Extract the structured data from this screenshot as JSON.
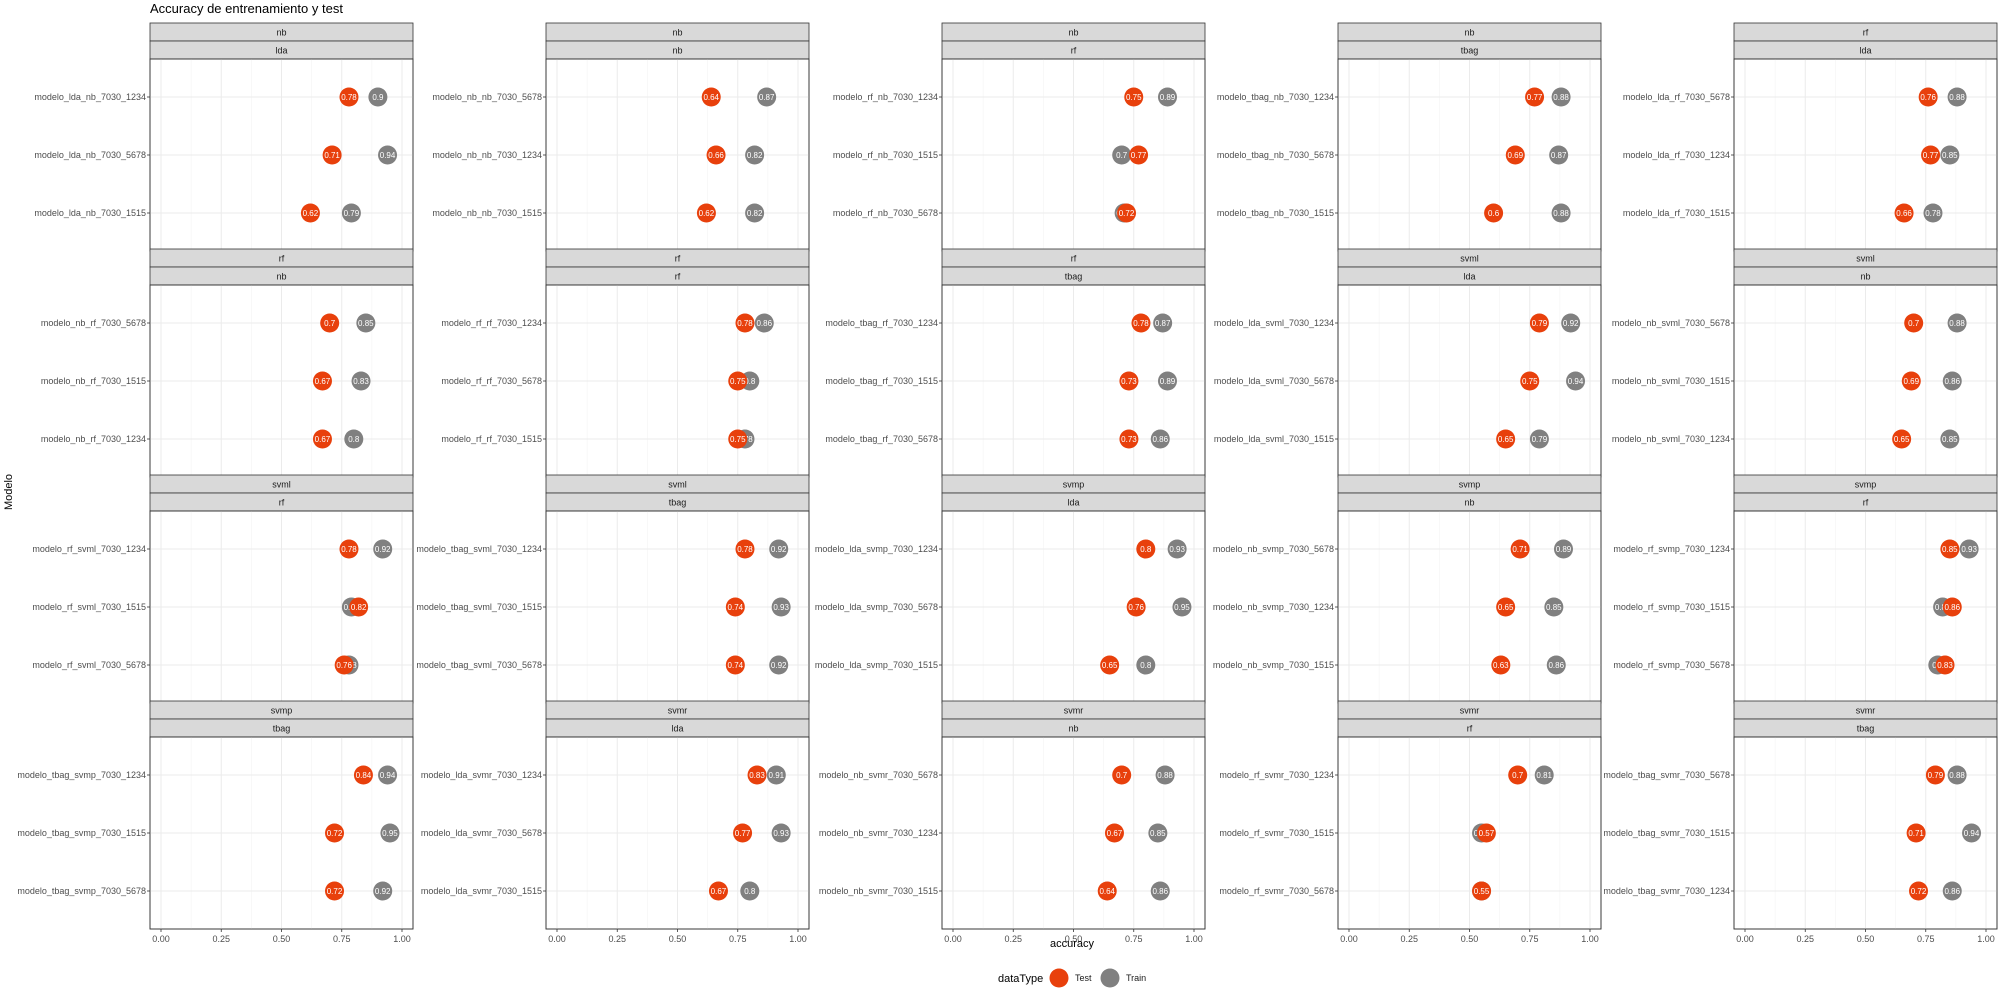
{
  "title": "Accuracy de entrenamiento y test",
  "chart_data": {
    "type": "scatter",
    "title": "Accuracy de entrenamiento y test",
    "xlabel": "accuracy",
    "ylabel": "Modelo",
    "xlim": [
      0,
      1
    ],
    "xticks": [
      "0.00",
      "0.25",
      "0.50",
      "0.75",
      "1.00"
    ],
    "grid": true,
    "legend": {
      "title": "dataType",
      "placement": "bottom",
      "entries": [
        {
          "name": "Test",
          "color": "#e8400c"
        },
        {
          "name": "Train",
          "color": "#808080"
        }
      ]
    },
    "panels": [
      {
        "strip_top": "nb",
        "strip_bottom": "lda",
        "rows": [
          {
            "model": "modelo_lda_nb_7030_1234",
            "test": 0.78,
            "train": 0.9
          },
          {
            "model": "modelo_lda_nb_7030_5678",
            "test": 0.71,
            "train": 0.94
          },
          {
            "model": "modelo_lda_nb_7030_1515",
            "test": 0.62,
            "train": 0.79
          }
        ]
      },
      {
        "strip_top": "nb",
        "strip_bottom": "nb",
        "rows": [
          {
            "model": "modelo_nb_nb_7030_5678",
            "test": 0.64,
            "train": 0.87
          },
          {
            "model": "modelo_nb_nb_7030_1234",
            "test": 0.66,
            "train": 0.82
          },
          {
            "model": "modelo_nb_nb_7030_1515",
            "test": 0.62,
            "train": 0.82
          }
        ]
      },
      {
        "strip_top": "nb",
        "strip_bottom": "rf",
        "rows": [
          {
            "model": "modelo_rf_nb_7030_1234",
            "test": 0.75,
            "train": 0.89
          },
          {
            "model": "modelo_rf_nb_7030_1515",
            "test": 0.77,
            "train": 0.7
          },
          {
            "model": "modelo_rf_nb_7030_5678",
            "test": 0.72,
            "train": 0.71
          }
        ]
      },
      {
        "strip_top": "nb",
        "strip_bottom": "tbag",
        "rows": [
          {
            "model": "modelo_tbag_nb_7030_1234",
            "test": 0.77,
            "train": 0.88
          },
          {
            "model": "modelo_tbag_nb_7030_5678",
            "test": 0.69,
            "train": 0.87
          },
          {
            "model": "modelo_tbag_nb_7030_1515",
            "test": 0.6,
            "train": 0.88
          }
        ]
      },
      {
        "strip_top": "rf",
        "strip_bottom": "lda",
        "rows": [
          {
            "model": "modelo_lda_rf_7030_5678",
            "test": 0.76,
            "train": 0.88
          },
          {
            "model": "modelo_lda_rf_7030_1234",
            "test": 0.77,
            "train": 0.85
          },
          {
            "model": "modelo_lda_rf_7030_1515",
            "test": 0.66,
            "train": 0.78
          }
        ]
      },
      {
        "strip_top": "rf",
        "strip_bottom": "nb",
        "rows": [
          {
            "model": "modelo_nb_rf_7030_5678",
            "test": 0.7,
            "train": 0.85
          },
          {
            "model": "modelo_nb_rf_7030_1515",
            "test": 0.67,
            "train": 0.83
          },
          {
            "model": "modelo_nb_rf_7030_1234",
            "test": 0.67,
            "train": 0.8
          }
        ]
      },
      {
        "strip_top": "rf",
        "strip_bottom": "rf",
        "rows": [
          {
            "model": "modelo_rf_rf_7030_1234",
            "test": 0.78,
            "train": 0.86
          },
          {
            "model": "modelo_rf_rf_7030_5678",
            "test": 0.75,
            "train": 0.8
          },
          {
            "model": "modelo_rf_rf_7030_1515",
            "test": 0.75,
            "train": 0.78
          }
        ]
      },
      {
        "strip_top": "rf",
        "strip_bottom": "tbag",
        "rows": [
          {
            "model": "modelo_tbag_rf_7030_1234",
            "test": 0.78,
            "train": 0.87
          },
          {
            "model": "modelo_tbag_rf_7030_1515",
            "test": 0.73,
            "train": 0.89
          },
          {
            "model": "modelo_tbag_rf_7030_5678",
            "test": 0.73,
            "train": 0.86
          }
        ]
      },
      {
        "strip_top": "svml",
        "strip_bottom": "lda",
        "rows": [
          {
            "model": "modelo_lda_svml_7030_1234",
            "test": 0.79,
            "train": 0.92
          },
          {
            "model": "modelo_lda_svml_7030_5678",
            "test": 0.75,
            "train": 0.94
          },
          {
            "model": "modelo_lda_svml_7030_1515",
            "test": 0.65,
            "train": 0.79
          }
        ]
      },
      {
        "strip_top": "svml",
        "strip_bottom": "nb",
        "rows": [
          {
            "model": "modelo_nb_svml_7030_5678",
            "test": 0.7,
            "train": 0.88
          },
          {
            "model": "modelo_nb_svml_7030_1515",
            "test": 0.69,
            "train": 0.86
          },
          {
            "model": "modelo_nb_svml_7030_1234",
            "test": 0.65,
            "train": 0.85
          }
        ]
      },
      {
        "strip_top": "svml",
        "strip_bottom": "rf",
        "rows": [
          {
            "model": "modelo_rf_svml_7030_1234",
            "test": 0.78,
            "train": 0.92
          },
          {
            "model": "modelo_rf_svml_7030_1515",
            "test": 0.82,
            "train": 0.79
          },
          {
            "model": "modelo_rf_svml_7030_5678",
            "test": 0.76,
            "train": 0.78
          }
        ]
      },
      {
        "strip_top": "svml",
        "strip_bottom": "tbag",
        "rows": [
          {
            "model": "modelo_tbag_svml_7030_1234",
            "test": 0.78,
            "train": 0.92
          },
          {
            "model": "modelo_tbag_svml_7030_1515",
            "test": 0.74,
            "train": 0.93
          },
          {
            "model": "modelo_tbag_svml_7030_5678",
            "test": 0.74,
            "train": 0.92
          }
        ]
      },
      {
        "strip_top": "svmp",
        "strip_bottom": "lda",
        "rows": [
          {
            "model": "modelo_lda_svmp_7030_1234",
            "test": 0.8,
            "train": 0.93
          },
          {
            "model": "modelo_lda_svmp_7030_5678",
            "test": 0.76,
            "train": 0.95
          },
          {
            "model": "modelo_lda_svmp_7030_1515",
            "test": 0.65,
            "train": 0.8
          }
        ]
      },
      {
        "strip_top": "svmp",
        "strip_bottom": "nb",
        "rows": [
          {
            "model": "modelo_nb_svmp_7030_5678",
            "test": 0.71,
            "train": 0.89
          },
          {
            "model": "modelo_nb_svmp_7030_1234",
            "test": 0.65,
            "train": 0.85
          },
          {
            "model": "modelo_nb_svmp_7030_1515",
            "test": 0.63,
            "train": 0.86
          }
        ]
      },
      {
        "strip_top": "svmp",
        "strip_bottom": "rf",
        "rows": [
          {
            "model": "modelo_rf_svmp_7030_1234",
            "test": 0.85,
            "train": 0.93
          },
          {
            "model": "modelo_rf_svmp_7030_1515",
            "test": 0.86,
            "train": 0.82
          },
          {
            "model": "modelo_rf_svmp_7030_5678",
            "test": 0.83,
            "train": 0.8
          }
        ]
      },
      {
        "strip_top": "svmp",
        "strip_bottom": "tbag",
        "rows": [
          {
            "model": "modelo_tbag_svmp_7030_1234",
            "test": 0.84,
            "train": 0.94
          },
          {
            "model": "modelo_tbag_svmp_7030_1515",
            "test": 0.72,
            "train": 0.95
          },
          {
            "model": "modelo_tbag_svmp_7030_5678",
            "test": 0.72,
            "train": 0.92
          }
        ]
      },
      {
        "strip_top": "svmr",
        "strip_bottom": "lda",
        "rows": [
          {
            "model": "modelo_lda_svmr_7030_1234",
            "test": 0.83,
            "train": 0.91
          },
          {
            "model": "modelo_lda_svmr_7030_5678",
            "test": 0.77,
            "train": 0.93
          },
          {
            "model": "modelo_lda_svmr_7030_1515",
            "test": 0.67,
            "train": 0.8
          }
        ]
      },
      {
        "strip_top": "svmr",
        "strip_bottom": "nb",
        "rows": [
          {
            "model": "modelo_nb_svmr_7030_5678",
            "test": 0.7,
            "train": 0.88
          },
          {
            "model": "modelo_nb_svmr_7030_1234",
            "test": 0.67,
            "train": 0.85
          },
          {
            "model": "modelo_nb_svmr_7030_1515",
            "test": 0.64,
            "train": 0.86
          }
        ]
      },
      {
        "strip_top": "svmr",
        "strip_bottom": "rf",
        "rows": [
          {
            "model": "modelo_rf_svmr_7030_1234",
            "test": 0.7,
            "train": 0.81
          },
          {
            "model": "modelo_rf_svmr_7030_1515",
            "test": 0.57,
            "train": 0.55
          },
          {
            "model": "modelo_rf_svmr_7030_5678",
            "test": 0.55,
            "train": 0.55
          }
        ]
      },
      {
        "strip_top": "svmr",
        "strip_bottom": "tbag",
        "rows": [
          {
            "model": "modelo_tbag_svmr_7030_5678",
            "test": 0.79,
            "train": 0.88
          },
          {
            "model": "modelo_tbag_svmr_7030_1515",
            "test": 0.71,
            "train": 0.94
          },
          {
            "model": "modelo_tbag_svmr_7030_1234",
            "test": 0.72,
            "train": 0.86
          }
        ]
      }
    ]
  }
}
